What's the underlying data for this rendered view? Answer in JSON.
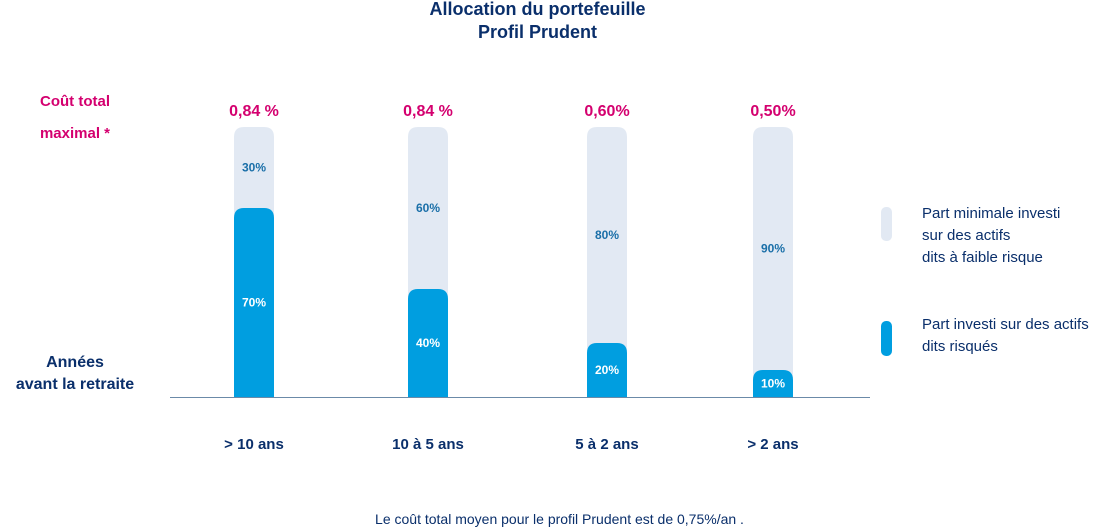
{
  "chart_data": {
    "type": "bar",
    "title": "Allocation du portefeuille",
    "subtitle": "Profil Prudent",
    "cost_label_lines": [
      "Coût total",
      "maximal *"
    ],
    "xlabel_lines": [
      "Années",
      "avant la retraite"
    ],
    "categories": [
      "> 10 ans",
      "10 à 5 ans",
      "5 à 2 ans",
      "> 2 ans"
    ],
    "costs": [
      "0,84 %",
      "0,84 %",
      "0,60%",
      "0,50%"
    ],
    "series": [
      {
        "name": "Part investi sur des actifs dits risqués",
        "legend_lines": [
          "Part investi sur des actifs",
          "dits risqués"
        ],
        "color": "#009ee0",
        "values": [
          70,
          40,
          20,
          10
        ],
        "labels": [
          "70%",
          "40%",
          "20%",
          "10%"
        ]
      },
      {
        "name": "Part minimale investi sur des actifs dits à faible risque",
        "legend_lines": [
          "Part minimale investi",
          "sur des actifs",
          "dits à faible risque"
        ],
        "color": "#e2e9f3",
        "values": [
          30,
          60,
          80,
          90
        ],
        "labels": [
          "30%",
          "60%",
          "80%",
          "90%"
        ]
      }
    ],
    "stacked": true,
    "ylim": [
      0,
      100
    ],
    "legend_position": "right",
    "colors": {
      "title": "#0a2f6b",
      "cost": "#d4006f",
      "axis": "#6b8aa8",
      "light_label": "#1a6fa8",
      "dark_label": "#ffffff"
    }
  },
  "footnote": "Le coût total moyen pour le profil Prudent est de 0,75%/an ."
}
